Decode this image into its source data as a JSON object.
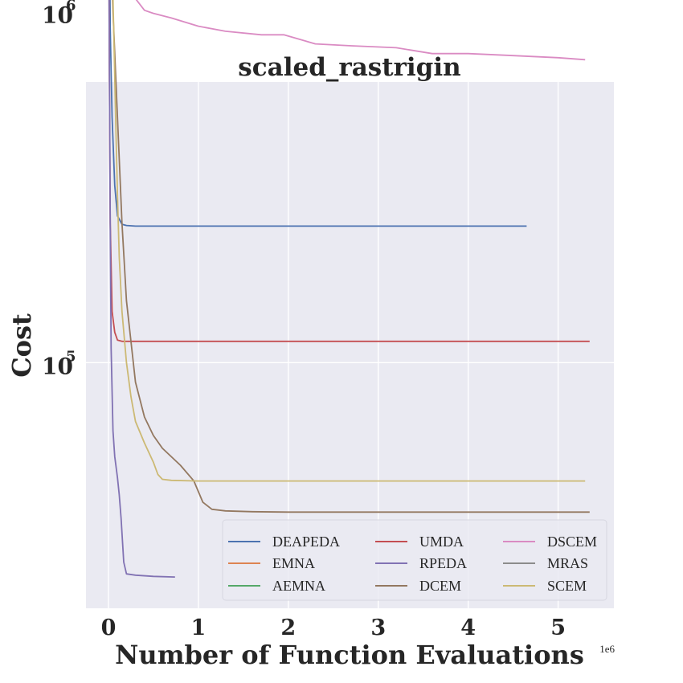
{
  "chart_data": {
    "type": "line",
    "title": "scaled_rastrigin",
    "xlabel": "Number of Function Evaluations",
    "ylabel": "Cost",
    "x_offset_label": "1e6",
    "xlim": [
      -0.25,
      5.62
    ],
    "ylim_log10": [
      4.3,
      5.8
    ],
    "y_scale": "log",
    "x_ticks": [
      0,
      1,
      2,
      3,
      4,
      5
    ],
    "x_tick_labels": [
      "0",
      "1",
      "2",
      "3",
      "4",
      "5"
    ],
    "y_ticks": [
      100000,
      1000000
    ],
    "y_tick_base": "10",
    "y_tick_exponents": [
      "5",
      "6"
    ],
    "grid": true,
    "background": "#eaeaf2",
    "legend_position": "lower-right",
    "series": [
      {
        "name": "DEAPEDA",
        "color": "#4c72b0",
        "x": [
          0,
          0.01,
          0.02,
          0.04,
          0.07,
          0.1,
          0.15,
          0.2,
          0.3,
          1,
          2,
          3,
          4,
          4.65
        ],
        "y": [
          3200000,
          1800000,
          900000,
          500000,
          320000,
          262000,
          248000,
          246000,
          245000,
          245000,
          245000,
          245000,
          245000,
          245000
        ]
      },
      {
        "name": "EMNA",
        "color": "#dd8452",
        "x": [],
        "y": []
      },
      {
        "name": "AEMNA",
        "color": "#55a868",
        "x": [],
        "y": []
      },
      {
        "name": "UMDA",
        "color": "#c44e52",
        "x": [
          0,
          0.005,
          0.01,
          0.02,
          0.04,
          0.07,
          0.1,
          0.15,
          0.3,
          1,
          2,
          3,
          4,
          5,
          5.35
        ],
        "y": [
          2900000,
          1600000,
          700000,
          250000,
          140000,
          122000,
          116000,
          115000,
          115000,
          115000,
          115000,
          115000,
          115000,
          115000,
          115000
        ]
      },
      {
        "name": "RPEDA",
        "color": "#8172b3",
        "x": [
          0,
          0.01,
          0.02,
          0.03,
          0.05,
          0.07,
          0.1,
          0.12,
          0.14,
          0.17,
          0.2,
          0.3,
          0.5,
          0.74
        ],
        "y": [
          2800000,
          700000,
          250000,
          110000,
          64000,
          54000,
          47000,
          42000,
          36000,
          27000,
          25000,
          24800,
          24600,
          24500
        ]
      },
      {
        "name": "DCEM",
        "color": "#937860",
        "x": [
          0,
          0.02,
          0.05,
          0.1,
          0.15,
          0.2,
          0.3,
          0.4,
          0.5,
          0.6,
          0.8,
          0.95,
          1.05,
          1.15,
          1.3,
          1.6,
          2,
          3,
          4,
          5.35
        ],
        "y": [
          3000000,
          1800000,
          1000000,
          500000,
          250000,
          150000,
          88000,
          70000,
          62000,
          57000,
          51000,
          46000,
          40000,
          38200,
          37800,
          37600,
          37500,
          37500,
          37500,
          37500
        ]
      },
      {
        "name": "DSCEM",
        "color": "#da8bc3",
        "x": [
          0,
          0.03,
          0.05,
          0.1,
          0.15,
          0.2,
          0.3,
          0.4,
          0.5,
          0.7,
          1,
          1.3,
          1.7,
          1.95,
          2.3,
          2.7,
          3.2,
          3.6,
          4,
          4.5,
          5,
          5.3
        ],
        "y": [
          5100000,
          2000000,
          1600000,
          1400000,
          1220000,
          1140000,
          1090000,
          1010000,
          990000,
          960000,
          910000,
          880000,
          860000,
          860000,
          810000,
          800000,
          790000,
          760000,
          760000,
          750000,
          740000,
          730000
        ]
      },
      {
        "name": "MRAS",
        "color": "#8c8c8c",
        "x": [],
        "y": []
      },
      {
        "name": "SCEM",
        "color": "#ccb974",
        "x": [
          0,
          0.02,
          0.05,
          0.08,
          0.1,
          0.12,
          0.15,
          0.2,
          0.25,
          0.3,
          0.4,
          0.5,
          0.55,
          0.6,
          0.7,
          1,
          2,
          3,
          4,
          5,
          5.3
        ],
        "y": [
          4900000,
          2500000,
          1100000,
          500000,
          300000,
          200000,
          140000,
          100000,
          80000,
          68000,
          59000,
          52000,
          48000,
          46500,
          46200,
          46000,
          46000,
          46000,
          46000,
          46000,
          46000
        ]
      }
    ]
  }
}
